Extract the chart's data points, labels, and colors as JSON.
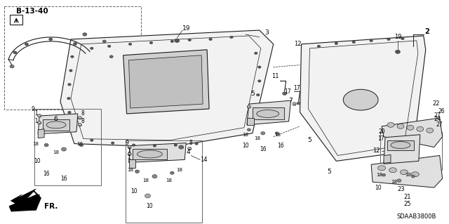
{
  "background_color": "#ffffff",
  "figsize": [
    6.4,
    3.19
  ],
  "dpi": 100,
  "diagram_code": "SDAAB3800B",
  "ref_code": "B-13-40",
  "direction_label": "FR.",
  "line_color": "#1a1a1a",
  "gray_fill": "#e8e8e8",
  "dark_fill": "#555555",
  "medium_fill": "#999999"
}
